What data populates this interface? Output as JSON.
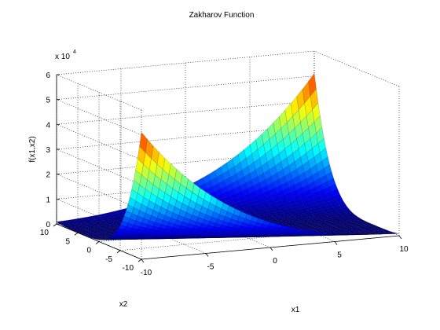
{
  "chart_data": {
    "type": "surface",
    "title": "Zakharov Function",
    "xlabel": "x1",
    "ylabel": "x2",
    "zlabel": "f(x1,x2)",
    "z_multiplier": "x 10",
    "z_exponent": "4",
    "xlim": [
      -10,
      10
    ],
    "ylim": [
      -10,
      10
    ],
    "zlim": [
      0,
      60000
    ],
    "x_ticks": [
      "-10",
      "-5",
      "0",
      "5",
      "10"
    ],
    "y_ticks": [
      "-10",
      "-5",
      "0",
      "5",
      "10"
    ],
    "z_ticks": [
      "0",
      "1",
      "2",
      "3",
      "4",
      "5",
      "6"
    ],
    "function": "x1^2 + x2^2 + (0.5*x1 + x2)^2 + (0.5*x1 + x2)^4",
    "grid": true,
    "colormap": "jet"
  }
}
